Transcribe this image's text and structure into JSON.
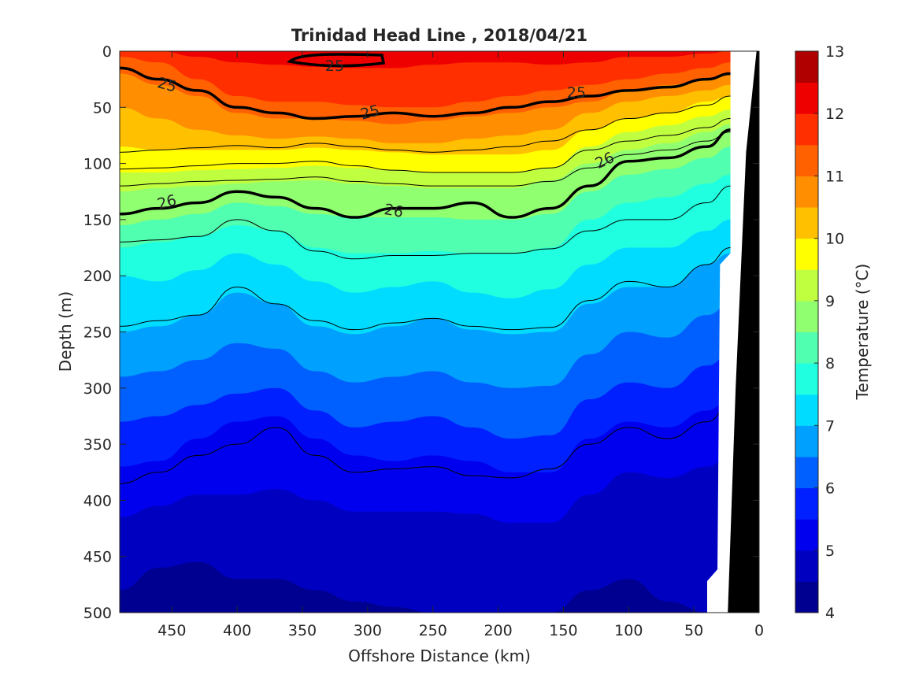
{
  "chart_data": {
    "type": "contour",
    "title": "Trinidad Head Line , 2018/04/21",
    "xlabel": "Offshore Distance (km)",
    "ylabel": "Depth (m)",
    "colorbar_label": "Temperature (°C)",
    "xlim": [
      490,
      0
    ],
    "ylim": [
      0,
      500
    ],
    "xticks": [
      450,
      400,
      350,
      300,
      250,
      200,
      150,
      100,
      50,
      0
    ],
    "yticks": [
      0,
      50,
      100,
      150,
      200,
      250,
      300,
      350,
      400,
      450,
      500
    ],
    "colorbar_ticks": [
      4,
      5,
      6,
      7,
      8,
      9,
      10,
      11,
      12,
      13
    ],
    "colorbar_range": [
      4,
      13
    ],
    "temperature_levels": [
      {
        "min": 4.0,
        "max": 4.5,
        "color": "#000090"
      },
      {
        "min": 4.5,
        "max": 5.0,
        "color": "#0000c0"
      },
      {
        "min": 5.0,
        "max": 5.5,
        "color": "#0000ef"
      },
      {
        "min": 5.5,
        "max": 6.0,
        "color": "#0020ff"
      },
      {
        "min": 6.0,
        "max": 6.5,
        "color": "#0060ff"
      },
      {
        "min": 6.5,
        "max": 7.0,
        "color": "#00a0ff"
      },
      {
        "min": 7.0,
        "max": 7.5,
        "color": "#00dcff"
      },
      {
        "min": 7.5,
        "max": 8.0,
        "color": "#20ffdf"
      },
      {
        "min": 8.0,
        "max": 8.5,
        "color": "#50ffaf"
      },
      {
        "min": 8.5,
        "max": 9.0,
        "color": "#90ff70"
      },
      {
        "min": 9.0,
        "max": 9.5,
        "color": "#c0ff40"
      },
      {
        "min": 9.5,
        "max": 10.0,
        "color": "#ffff00"
      },
      {
        "min": 10.0,
        "max": 10.5,
        "color": "#ffc000"
      },
      {
        "min": 10.5,
        "max": 11.0,
        "color": "#ff8f00"
      },
      {
        "min": 11.0,
        "max": 11.5,
        "color": "#ff6000"
      },
      {
        "min": 11.5,
        "max": 12.0,
        "color": "#ff2f00"
      },
      {
        "min": 12.0,
        "max": 12.5,
        "color": "#ef0000"
      },
      {
        "min": 12.5,
        "max": 13.0,
        "color": "#b00000"
      }
    ],
    "x": [
      490,
      460,
      430,
      400,
      370,
      340,
      310,
      280,
      250,
      220,
      190,
      160,
      130,
      100,
      70,
      40,
      22
    ],
    "temperature_band_depths": [
      {
        "temp": 12.0,
        "depth": [
          0,
          0,
          5,
          10,
          12,
          14,
          15,
          15,
          12,
          10,
          10,
          12,
          10,
          5,
          5,
          2,
          0
        ]
      },
      {
        "temp": 11.5,
        "depth": [
          5,
          10,
          25,
          40,
          45,
          45,
          48,
          50,
          50,
          45,
          40,
          35,
          30,
          25,
          20,
          15,
          10
        ]
      },
      {
        "temp": 11.0,
        "depth": [
          20,
          30,
          40,
          55,
          60,
          60,
          62,
          65,
          62,
          58,
          55,
          50,
          45,
          35,
          30,
          25,
          20
        ]
      },
      {
        "temp": 10.5,
        "depth": [
          50,
          60,
          70,
          75,
          78,
          76,
          78,
          82,
          82,
          78,
          75,
          70,
          55,
          45,
          40,
          35,
          30
        ]
      },
      {
        "temp": 10.0,
        "depth": [
          85,
          88,
          88,
          88,
          88,
          86,
          88,
          90,
          92,
          92,
          92,
          88,
          70,
          60,
          55,
          45,
          40
        ]
      },
      {
        "temp": 9.5,
        "depth": [
          108,
          108,
          106,
          105,
          104,
          102,
          104,
          106,
          108,
          108,
          108,
          104,
          85,
          72,
          66,
          58,
          52
        ]
      },
      {
        "temp": 9.0,
        "depth": [
          125,
          122,
          120,
          118,
          116,
          115,
          118,
          120,
          122,
          122,
          122,
          115,
          100,
          88,
          82,
          72,
          65
        ]
      },
      {
        "temp": 8.5,
        "depth": [
          155,
          150,
          145,
          135,
          138,
          145,
          148,
          148,
          148,
          150,
          150,
          145,
          125,
          110,
          105,
          95,
          85
        ]
      },
      {
        "temp": 8.0,
        "depth": [
          175,
          170,
          165,
          155,
          160,
          175,
          180,
          180,
          178,
          180,
          180,
          175,
          150,
          135,
          130,
          118,
          110
        ]
      },
      {
        "temp": 7.5,
        "depth": [
          200,
          205,
          195,
          180,
          190,
          205,
          215,
          210,
          205,
          215,
          220,
          212,
          190,
          175,
          175,
          160,
          150
        ]
      },
      {
        "temp": 7.0,
        "depth": [
          250,
          245,
          235,
          215,
          225,
          245,
          252,
          245,
          238,
          248,
          252,
          250,
          225,
          210,
          210,
          190,
          180
        ]
      },
      {
        "temp": 6.5,
        "depth": [
          290,
          285,
          275,
          260,
          265,
          285,
          295,
          290,
          285,
          295,
          300,
          298,
          270,
          250,
          255,
          235,
          225
        ]
      },
      {
        "temp": 6.0,
        "depth": [
          330,
          325,
          315,
          305,
          300,
          320,
          335,
          330,
          325,
          335,
          345,
          342,
          310,
          295,
          300,
          280,
          270
        ]
      },
      {
        "temp": 5.5,
        "depth": [
          370,
          365,
          345,
          330,
          325,
          345,
          360,
          365,
          360,
          365,
          375,
          375,
          345,
          330,
          335,
          320,
          310
        ]
      },
      {
        "temp": 5.0,
        "depth": [
          415,
          405,
          395,
          395,
          390,
          400,
          410,
          410,
          410,
          412,
          420,
          420,
          395,
          375,
          380,
          370,
          360
        ]
      },
      {
        "temp": 4.5,
        "depth": [
          480,
          460,
          455,
          470,
          470,
          480,
          490,
          495,
          500,
          500,
          500,
          500,
          480,
          470,
          490,
          500,
          500
        ]
      }
    ],
    "density_contours": [
      {
        "label": "25",
        "bold": true,
        "depth": [
          15,
          25,
          35,
          50,
          55,
          60,
          58,
          55,
          58,
          55,
          50,
          45,
          40,
          35,
          32,
          25,
          20
        ]
      },
      {
        "label": "26",
        "bold": true,
        "depth": [
          145,
          140,
          135,
          125,
          130,
          140,
          148,
          140,
          140,
          135,
          148,
          140,
          120,
          98,
          95,
          85,
          70
        ]
      },
      {
        "label": "",
        "bold": false,
        "depth": [
          90,
          88,
          86,
          84,
          86,
          82,
          85,
          88,
          90,
          88,
          85,
          80,
          70,
          60,
          55,
          48,
          40
        ]
      },
      {
        "label": "",
        "bold": false,
        "depth": [
          105,
          104,
          102,
          100,
          100,
          98,
          102,
          106,
          108,
          108,
          108,
          104,
          88,
          80,
          75,
          68,
          60
        ]
      },
      {
        "label": "",
        "bold": false,
        "depth": [
          120,
          118,
          116,
          115,
          114,
          112,
          116,
          118,
          120,
          120,
          120,
          116,
          104,
          92,
          88,
          80,
          72
        ]
      },
      {
        "label": "",
        "bold": false,
        "depth": [
          170,
          168,
          165,
          150,
          160,
          178,
          185,
          182,
          182,
          180,
          180,
          176,
          160,
          150,
          150,
          135,
          120
        ]
      },
      {
        "label": "",
        "bold": false,
        "depth": [
          245,
          240,
          235,
          210,
          225,
          240,
          248,
          242,
          238,
          245,
          248,
          246,
          222,
          205,
          210,
          190,
          175
        ]
      },
      {
        "label": "",
        "bold": false,
        "depth": [
          385,
          375,
          360,
          350,
          335,
          360,
          375,
          372,
          370,
          378,
          380,
          372,
          350,
          335,
          345,
          330,
          315
        ]
      }
    ],
    "label_positions": [
      {
        "label": "25",
        "x": 460
      },
      {
        "label": "25",
        "x": 320
      },
      {
        "label": "25",
        "x": 320,
        "depth": 15
      },
      {
        "label": "25",
        "x": 145,
        "depth": 35
      },
      {
        "label": "26",
        "x": 460
      },
      {
        "label": "26",
        "x": 285
      },
      {
        "label": "26",
        "x": 120,
        "depth": 95
      }
    ],
    "ocean_edge_km": [
      [
        0,
        22
      ],
      [
        180,
        22
      ],
      [
        190,
        30
      ],
      [
        470,
        32
      ],
      [
        500,
        40
      ]
    ],
    "seafloor_km": [
      [
        0,
        2
      ],
      [
        90,
        10
      ],
      [
        300,
        18
      ],
      [
        500,
        24
      ]
    ]
  }
}
